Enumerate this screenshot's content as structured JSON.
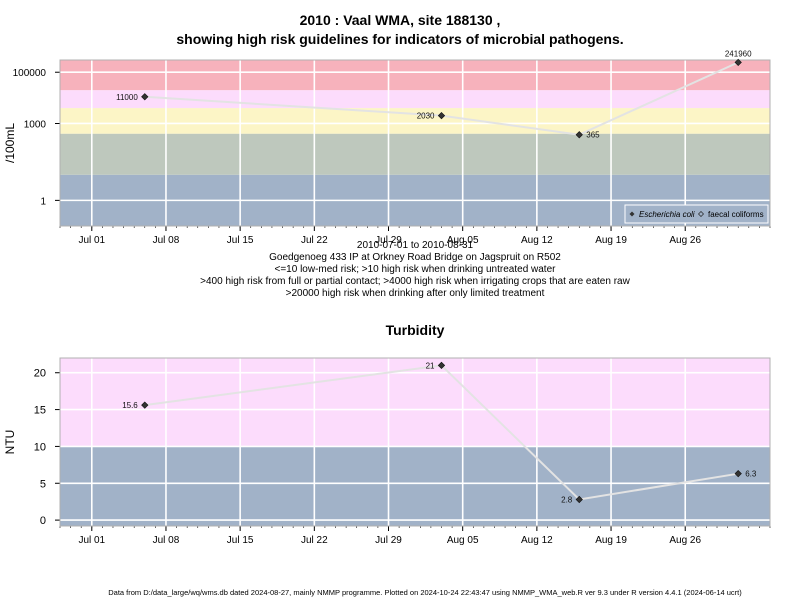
{
  "title_line1": "2010 : Vaal WMA, site 188130 ,",
  "title_line2": "showing high risk guidelines for indicators of microbial pathogens.",
  "subtitle_lines": [
    "2010-07-01 to 2010-08-31",
    "Goedgenoeg 433 IP at Orkney Road Bridge on Jagspruit on R502",
    "<=10 low-med risk; >10 high risk when drinking untreated water",
    ">400 high risk from full or partial contact; >4000 high risk when irrigating crops that are eaten raw",
    ">20000 high risk when drinking after only limited treatment"
  ],
  "footer": "Data from D:/data_large/wq/wms.db dated 2024-08-27, mainly NMMP programme. Plotted on 2024-10-24 22:43:47 using NMMP_WMA_web.R ver 9.3 under R version 4.4.1 (2024-06-14 ucrt)",
  "colors": {
    "red": "#f7b2bc",
    "pink": "#fcdcfc",
    "yellow": "#fcf5c6",
    "green": "#bec8bd",
    "blue": "#a1b2c8",
    "line": "#e3e3e3",
    "marker": "#333333"
  },
  "chart_data": [
    {
      "type": "line",
      "title": "",
      "ylabel": "/100mL",
      "y_scale": "log10",
      "ylim": [
        0.1,
        300000
      ],
      "y_ticks": [
        1,
        1000,
        100000
      ],
      "y_tick_labels": [
        "1",
        "1000",
        "100000"
      ],
      "x_tick_labels": [
        "Jul 01",
        "Jul 08",
        "Jul 15",
        "Jul 22",
        "Jul 29",
        "Aug 05",
        "Aug 12",
        "Aug 19",
        "Aug 26"
      ],
      "x_tick_dates": [
        "2010-07-01",
        "2010-07-08",
        "2010-07-15",
        "2010-07-22",
        "2010-07-29",
        "2010-08-05",
        "2010-08-12",
        "2010-08-19",
        "2010-08-26"
      ],
      "xlim": [
        "2010-06-28",
        "2010-09-03"
      ],
      "grid": true,
      "bands": [
        {
          "from": 0.1,
          "to": 10,
          "color": "blue"
        },
        {
          "from": 10,
          "to": 400,
          "color": "green"
        },
        {
          "from": 400,
          "to": 4000,
          "color": "yellow"
        },
        {
          "from": 4000,
          "to": 20000,
          "color": "pink"
        },
        {
          "from": 20000,
          "to": 300000,
          "color": "red"
        }
      ],
      "legend_position": "bottom-right",
      "legend": [
        "Escherichia coli",
        "faecal coliforms"
      ],
      "series": [
        {
          "name": "Escherichia coli",
          "x": [
            "2010-07-06",
            "2010-08-03",
            "2010-08-16",
            "2010-08-31"
          ],
          "y": [
            11000,
            2030,
            365,
            241960
          ],
          "labels": [
            "11000",
            "2030",
            "365",
            "241960"
          ],
          "label_side": [
            "left",
            "left",
            "right",
            "top"
          ]
        }
      ]
    },
    {
      "type": "line",
      "title": "Turbidity",
      "ylabel": "NTU",
      "ylim": [
        -0.8,
        22
      ],
      "y_ticks": [
        0,
        5,
        10,
        15,
        20
      ],
      "y_tick_labels": [
        "0",
        "5",
        "10",
        "15",
        "20"
      ],
      "x_tick_labels": [
        "Jul 01",
        "Jul 08",
        "Jul 15",
        "Jul 22",
        "Jul 29",
        "Aug 05",
        "Aug 12",
        "Aug 19",
        "Aug 26"
      ],
      "x_tick_dates": [
        "2010-07-01",
        "2010-07-08",
        "2010-07-15",
        "2010-07-22",
        "2010-07-29",
        "2010-08-05",
        "2010-08-12",
        "2010-08-19",
        "2010-08-26"
      ],
      "xlim": [
        "2010-06-28",
        "2010-09-03"
      ],
      "grid": true,
      "bands": [
        {
          "from": -0.8,
          "to": 10,
          "color": "blue"
        },
        {
          "from": 10,
          "to": 22,
          "color": "pink"
        }
      ],
      "series": [
        {
          "x": [
            "2010-07-06",
            "2010-08-03",
            "2010-08-16",
            "2010-08-31"
          ],
          "y": [
            15.6,
            21,
            2.8,
            6.3
          ],
          "labels": [
            "15.6",
            "21",
            "2.8",
            "6.3"
          ],
          "label_side": [
            "left",
            "left",
            "left",
            "right"
          ]
        }
      ]
    }
  ]
}
